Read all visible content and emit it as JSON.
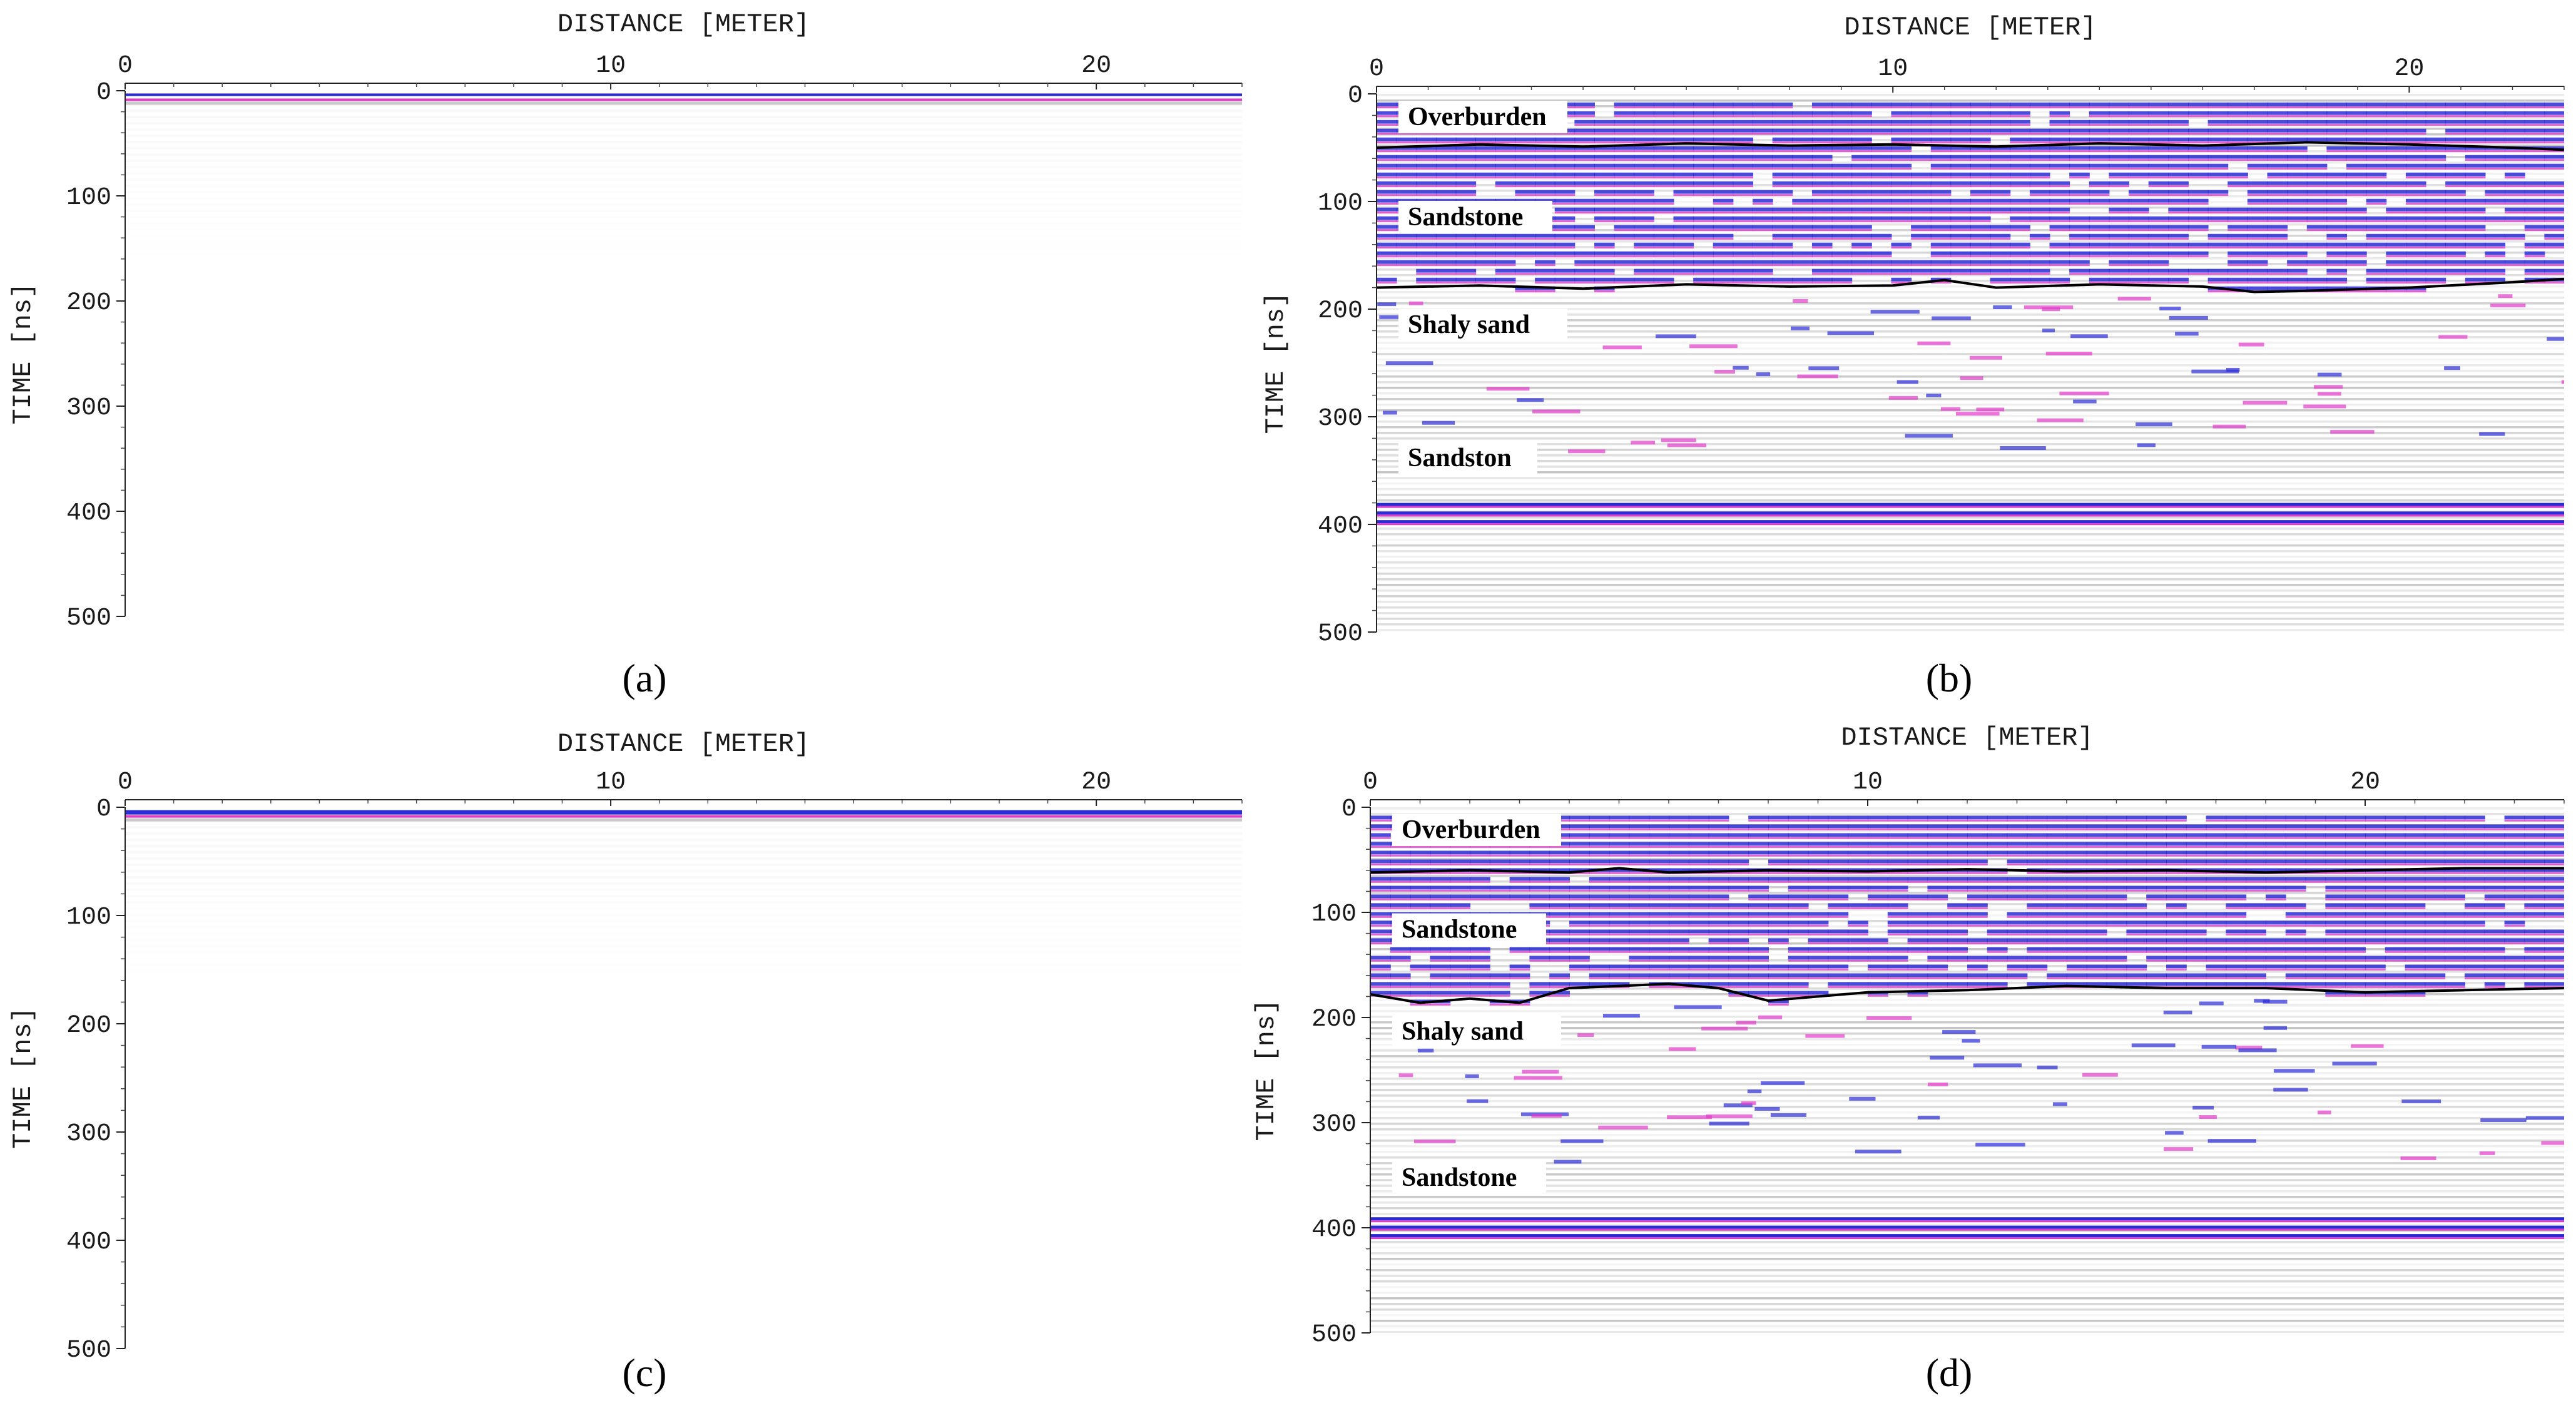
{
  "chart_data": [
    {
      "panel": "a",
      "type": "heatmap",
      "caption": "(a)",
      "xlabel": "DISTANCE [METER]",
      "ylabel": "TIME [ns]",
      "xlim": [
        0,
        23
      ],
      "ylim": [
        0,
        500
      ],
      "x_ticks": [
        0,
        10,
        20
      ],
      "y_ticks": [
        0,
        100,
        200,
        300,
        400,
        500
      ],
      "layers": [],
      "interfaces": [],
      "strong_reflections": [
        {
          "time": 5,
          "strength": "weak"
        }
      ],
      "fill": "faint",
      "colors": {
        "positive": "#2b2bd6",
        "negative": "#e03cc8",
        "background": "#ffffff"
      }
    },
    {
      "panel": "b",
      "type": "heatmap",
      "caption": "(b)",
      "xlabel": "DISTANCE [METER]",
      "ylabel": "TIME [ns]",
      "xlim": [
        0,
        23
      ],
      "ylim": [
        0,
        500
      ],
      "x_ticks": [
        0,
        10,
        20
      ],
      "y_ticks": [
        0,
        100,
        200,
        300,
        400,
        500
      ],
      "layers": [
        {
          "name": "Overburden",
          "time": 25
        },
        {
          "name": "Sandstone",
          "time": 118
        },
        {
          "name": "Shaly sand",
          "time": 218
        },
        {
          "name": "Sandston",
          "time": 342
        }
      ],
      "interfaces": [
        {
          "x": [
            0,
            2,
            4,
            6,
            8,
            10,
            12,
            14,
            16,
            18,
            20,
            22,
            23
          ],
          "time": [
            50,
            47,
            49,
            46,
            48,
            47,
            49,
            46,
            48,
            45,
            47,
            50,
            52
          ]
        },
        {
          "x": [
            0,
            2,
            4,
            6,
            8,
            10,
            11,
            12,
            14,
            16,
            17,
            18,
            20,
            22,
            23
          ],
          "time": [
            180,
            178,
            181,
            177,
            179,
            178,
            173,
            180,
            177,
            179,
            184,
            183,
            180,
            175,
            172
          ]
        }
      ],
      "strong_reflections": [
        {
          "time": 390,
          "strength": "strong"
        }
      ],
      "fill": "strong",
      "colors": {
        "positive": "#2b2bd6",
        "negative": "#e03cc8",
        "background": "#ffffff"
      }
    },
    {
      "panel": "c",
      "type": "heatmap",
      "caption": "(c)",
      "xlabel": "DISTANCE [METER]",
      "ylabel": "TIME [ns]",
      "xlim": [
        0,
        23
      ],
      "ylim": [
        0,
        500
      ],
      "x_ticks": [
        0,
        10,
        20
      ],
      "y_ticks": [
        0,
        100,
        200,
        300,
        400,
        500
      ],
      "layers": [],
      "interfaces": [],
      "strong_reflections": [
        {
          "time": 5,
          "strength": "medium"
        }
      ],
      "fill": "faint",
      "colors": {
        "positive": "#2b2bd6",
        "negative": "#e03cc8",
        "background": "#ffffff"
      }
    },
    {
      "panel": "d",
      "type": "heatmap",
      "caption": "(d)",
      "xlabel": "DISTANCE [METER]",
      "ylabel": "TIME [ns]",
      "xlim": [
        0,
        24
      ],
      "ylim": [
        0,
        500
      ],
      "x_ticks": [
        0,
        10,
        20
      ],
      "y_ticks": [
        0,
        100,
        200,
        300,
        400,
        500
      ],
      "layers": [
        {
          "name": "Overburden",
          "time": 25
        },
        {
          "name": "Sandstone",
          "time": 120
        },
        {
          "name": "Shaly sand",
          "time": 217
        },
        {
          "name": "Sandstone",
          "time": 356
        }
      ],
      "interfaces": [
        {
          "x": [
            0,
            2,
            4,
            5,
            6,
            8,
            10,
            12,
            14,
            16,
            18,
            20,
            22,
            24
          ],
          "time": [
            62,
            60,
            62,
            58,
            62,
            60,
            61,
            59,
            61,
            60,
            62,
            60,
            58,
            58
          ]
        },
        {
          "x": [
            0,
            1,
            2,
            3,
            4,
            5,
            6,
            7,
            8,
            10,
            12,
            14,
            16,
            18,
            20,
            22,
            24
          ],
          "time": [
            178,
            186,
            182,
            186,
            172,
            170,
            168,
            172,
            184,
            176,
            174,
            170,
            172,
            172,
            176,
            174,
            172
          ]
        }
      ],
      "strong_reflections": [
        {
          "time": 400,
          "strength": "strong"
        }
      ],
      "fill": "strong",
      "colors": {
        "positive": "#2b2bd6",
        "negative": "#e03cc8",
        "background": "#ffffff"
      }
    }
  ]
}
